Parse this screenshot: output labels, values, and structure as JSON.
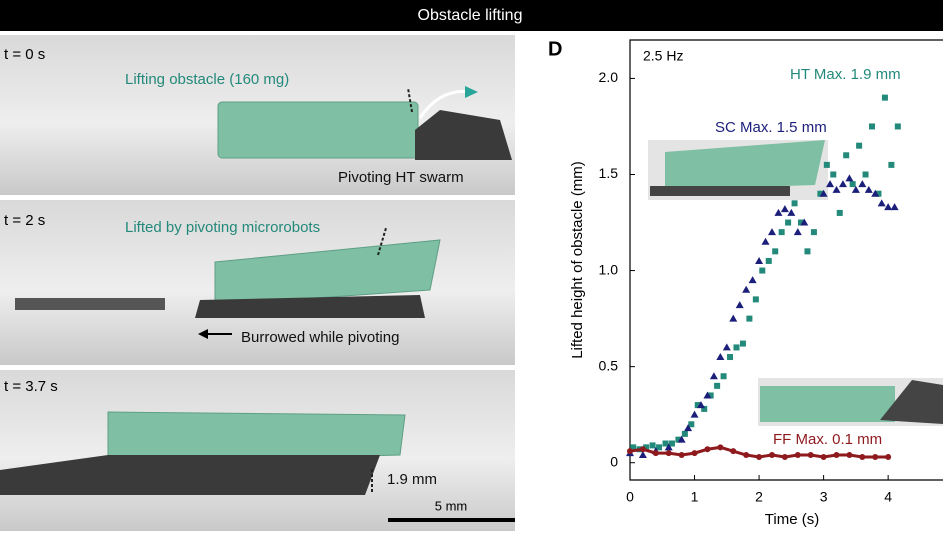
{
  "header": {
    "title": "Obstacle lifting"
  },
  "photos": [
    {
      "time_label": "t = 0 s",
      "annotations": [
        "Lifting obstacle (160 mg)",
        "Pivoting HT swarm"
      ]
    },
    {
      "time_label": "t = 2 s",
      "annotations": [
        "Lifted by pivoting microrobots",
        "Burrowed while pivoting"
      ]
    },
    {
      "time_label": "t = 3.7 s",
      "annotations": [
        "1.9 mm"
      ]
    }
  ],
  "scale_bar": "5 mm",
  "chart_data": {
    "type": "scatter",
    "panel_label": "D",
    "x_label": "Time (s)",
    "y_label": "Lifted height of obstacle (mm)",
    "annotations": [
      "2.5 Hz",
      "HT Max. 1.9 mm",
      "SC Max. 1.5 mm",
      "FF Max. 0.1 mm"
    ],
    "xlim": [
      0,
      4.85
    ],
    "ylim": [
      -0.09,
      2.2
    ],
    "xticks": [
      0,
      1,
      2,
      3,
      4
    ],
    "yticks": [
      0,
      0.5,
      {
        "value": 1,
        "label": "1.0"
      },
      1.5,
      {
        "value": 2,
        "label": "2.0"
      }
    ],
    "series": [
      {
        "name": "HT",
        "color": "#23897a",
        "marker": "square",
        "x": [
          0.05,
          0.15,
          0.25,
          0.35,
          0.45,
          0.55,
          0.65,
          0.75,
          0.85,
          0.95,
          1.05,
          1.15,
          1.25,
          1.35,
          1.45,
          1.55,
          1.65,
          1.75,
          1.85,
          1.95,
          2.05,
          2.15,
          2.25,
          2.35,
          2.45,
          2.55,
          2.65,
          2.75,
          2.85,
          2.95,
          3.05,
          3.15,
          3.25,
          3.35,
          3.45,
          3.55,
          3.65,
          3.75,
          3.85,
          3.95,
          4.05,
          4.15
        ],
        "y": [
          0.08,
          0.07,
          0.08,
          0.09,
          0.08,
          0.1,
          0.1,
          0.12,
          0.15,
          0.2,
          0.3,
          0.28,
          0.35,
          0.4,
          0.45,
          0.55,
          0.6,
          0.62,
          0.75,
          0.85,
          1.0,
          1.05,
          1.1,
          1.2,
          1.25,
          1.35,
          1.25,
          1.1,
          1.2,
          1.4,
          1.55,
          1.5,
          1.3,
          1.6,
          1.45,
          1.65,
          1.5,
          1.75,
          1.4,
          1.9,
          1.55,
          1.75
        ]
      },
      {
        "name": "SC",
        "color": "#1c1f7a",
        "marker": "triangle",
        "x": [
          0.0,
          0.2,
          0.4,
          0.6,
          0.8,
          0.9,
          1.0,
          1.1,
          1.2,
          1.3,
          1.4,
          1.5,
          1.6,
          1.7,
          1.8,
          1.9,
          2.0,
          2.1,
          2.2,
          2.3,
          2.4,
          2.5,
          2.6,
          2.7,
          3.0,
          3.1,
          3.2,
          3.3,
          3.4,
          3.5,
          3.6,
          3.7,
          3.8,
          3.9,
          4.0,
          4.1
        ],
        "y": [
          0.05,
          0.04,
          0.06,
          0.08,
          0.12,
          0.18,
          0.25,
          0.3,
          0.35,
          0.45,
          0.55,
          0.6,
          0.75,
          0.82,
          0.9,
          0.95,
          1.05,
          1.15,
          1.2,
          1.3,
          1.32,
          1.3,
          1.2,
          1.25,
          1.4,
          1.45,
          1.42,
          1.45,
          1.48,
          1.42,
          1.45,
          1.42,
          1.4,
          1.35,
          1.33,
          1.33
        ]
      },
      {
        "name": "FF",
        "color": "#8e1a1e",
        "marker": "circle",
        "x": [
          0.0,
          0.2,
          0.4,
          0.6,
          0.8,
          1.0,
          1.2,
          1.4,
          1.6,
          1.8,
          2.0,
          2.2,
          2.4,
          2.6,
          2.8,
          3.0,
          3.2,
          3.4,
          3.6,
          3.8,
          4.0
        ],
        "y": [
          0.06,
          0.07,
          0.05,
          0.05,
          0.04,
          0.05,
          0.07,
          0.08,
          0.06,
          0.04,
          0.03,
          0.04,
          0.03,
          0.04,
          0.04,
          0.03,
          0.04,
          0.04,
          0.03,
          0.03,
          0.03
        ]
      }
    ]
  }
}
